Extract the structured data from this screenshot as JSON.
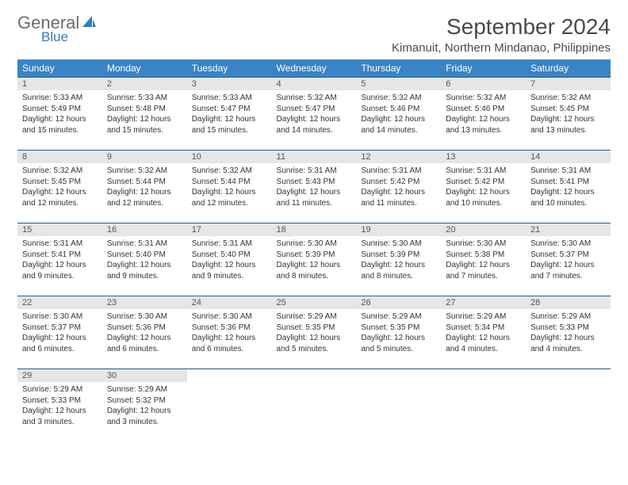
{
  "brand": {
    "text1": "General",
    "text2": "Blue",
    "text1_color": "#6b6b6b",
    "text2_color": "#2f7fbf",
    "sail_color": "#2f7fbf"
  },
  "title": "September 2024",
  "location": "Kimanuit, Northern Mindanao, Philippines",
  "header_bg": "#3a84c5",
  "header_fg": "#ffffff",
  "rule_color": "#2a5b86",
  "daynum_bg": "#e6e6e6",
  "daynum_fg": "#555555",
  "body_color": "#333333",
  "font_family": "Arial, Helvetica, sans-serif",
  "title_fontsize": 28,
  "location_fontsize": 15,
  "th_fontsize": 12,
  "cell_fontsize": 10,
  "weekdays": [
    "Sunday",
    "Monday",
    "Tuesday",
    "Wednesday",
    "Thursday",
    "Friday",
    "Saturday"
  ],
  "first_weekday_index": 0,
  "days": [
    {
      "n": 1,
      "sunrise": "5:33 AM",
      "sunset": "5:49 PM",
      "daylight": "12 hours and 15 minutes."
    },
    {
      "n": 2,
      "sunrise": "5:33 AM",
      "sunset": "5:48 PM",
      "daylight": "12 hours and 15 minutes."
    },
    {
      "n": 3,
      "sunrise": "5:33 AM",
      "sunset": "5:47 PM",
      "daylight": "12 hours and 15 minutes."
    },
    {
      "n": 4,
      "sunrise": "5:32 AM",
      "sunset": "5:47 PM",
      "daylight": "12 hours and 14 minutes."
    },
    {
      "n": 5,
      "sunrise": "5:32 AM",
      "sunset": "5:46 PM",
      "daylight": "12 hours and 14 minutes."
    },
    {
      "n": 6,
      "sunrise": "5:32 AM",
      "sunset": "5:46 PM",
      "daylight": "12 hours and 13 minutes."
    },
    {
      "n": 7,
      "sunrise": "5:32 AM",
      "sunset": "5:45 PM",
      "daylight": "12 hours and 13 minutes."
    },
    {
      "n": 8,
      "sunrise": "5:32 AM",
      "sunset": "5:45 PM",
      "daylight": "12 hours and 12 minutes."
    },
    {
      "n": 9,
      "sunrise": "5:32 AM",
      "sunset": "5:44 PM",
      "daylight": "12 hours and 12 minutes."
    },
    {
      "n": 10,
      "sunrise": "5:32 AM",
      "sunset": "5:44 PM",
      "daylight": "12 hours and 12 minutes."
    },
    {
      "n": 11,
      "sunrise": "5:31 AM",
      "sunset": "5:43 PM",
      "daylight": "12 hours and 11 minutes."
    },
    {
      "n": 12,
      "sunrise": "5:31 AM",
      "sunset": "5:42 PM",
      "daylight": "12 hours and 11 minutes."
    },
    {
      "n": 13,
      "sunrise": "5:31 AM",
      "sunset": "5:42 PM",
      "daylight": "12 hours and 10 minutes."
    },
    {
      "n": 14,
      "sunrise": "5:31 AM",
      "sunset": "5:41 PM",
      "daylight": "12 hours and 10 minutes."
    },
    {
      "n": 15,
      "sunrise": "5:31 AM",
      "sunset": "5:41 PM",
      "daylight": "12 hours and 9 minutes."
    },
    {
      "n": 16,
      "sunrise": "5:31 AM",
      "sunset": "5:40 PM",
      "daylight": "12 hours and 9 minutes."
    },
    {
      "n": 17,
      "sunrise": "5:31 AM",
      "sunset": "5:40 PM",
      "daylight": "12 hours and 9 minutes."
    },
    {
      "n": 18,
      "sunrise": "5:30 AM",
      "sunset": "5:39 PM",
      "daylight": "12 hours and 8 minutes."
    },
    {
      "n": 19,
      "sunrise": "5:30 AM",
      "sunset": "5:39 PM",
      "daylight": "12 hours and 8 minutes."
    },
    {
      "n": 20,
      "sunrise": "5:30 AM",
      "sunset": "5:38 PM",
      "daylight": "12 hours and 7 minutes."
    },
    {
      "n": 21,
      "sunrise": "5:30 AM",
      "sunset": "5:37 PM",
      "daylight": "12 hours and 7 minutes."
    },
    {
      "n": 22,
      "sunrise": "5:30 AM",
      "sunset": "5:37 PM",
      "daylight": "12 hours and 6 minutes."
    },
    {
      "n": 23,
      "sunrise": "5:30 AM",
      "sunset": "5:36 PM",
      "daylight": "12 hours and 6 minutes."
    },
    {
      "n": 24,
      "sunrise": "5:30 AM",
      "sunset": "5:36 PM",
      "daylight": "12 hours and 6 minutes."
    },
    {
      "n": 25,
      "sunrise": "5:29 AM",
      "sunset": "5:35 PM",
      "daylight": "12 hours and 5 minutes."
    },
    {
      "n": 26,
      "sunrise": "5:29 AM",
      "sunset": "5:35 PM",
      "daylight": "12 hours and 5 minutes."
    },
    {
      "n": 27,
      "sunrise": "5:29 AM",
      "sunset": "5:34 PM",
      "daylight": "12 hours and 4 minutes."
    },
    {
      "n": 28,
      "sunrise": "5:29 AM",
      "sunset": "5:33 PM",
      "daylight": "12 hours and 4 minutes."
    },
    {
      "n": 29,
      "sunrise": "5:29 AM",
      "sunset": "5:33 PM",
      "daylight": "12 hours and 3 minutes."
    },
    {
      "n": 30,
      "sunrise": "5:29 AM",
      "sunset": "5:32 PM",
      "daylight": "12 hours and 3 minutes."
    }
  ]
}
